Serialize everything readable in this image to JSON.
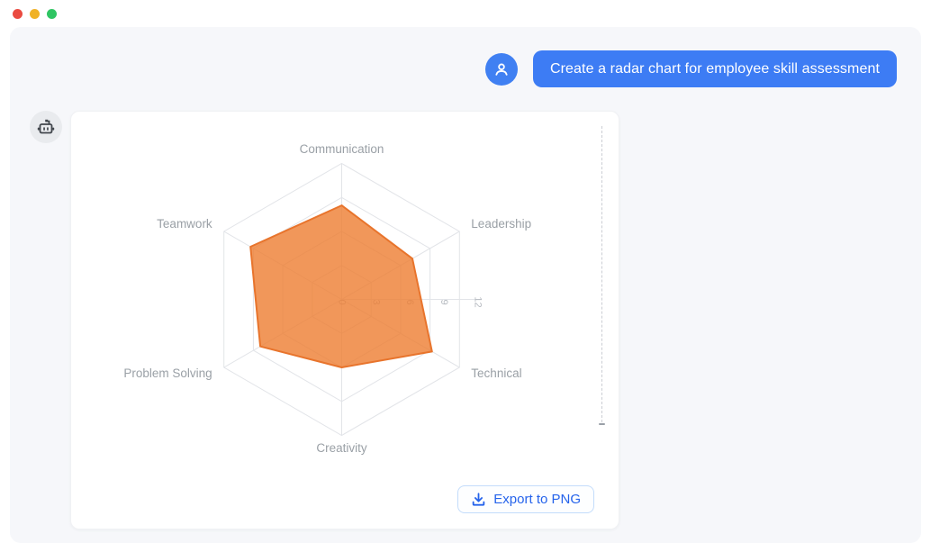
{
  "window": {
    "traffic_lights": {
      "close_color": "#ea4b41",
      "minimize_color": "#f0b226",
      "zoom_color": "#2fc563"
    }
  },
  "user_message": {
    "text": "Create a radar chart for employee skill assessment",
    "bubble_color": "#3d7cf4",
    "avatar_color": "#4080f2"
  },
  "assistant": {
    "export_button_label": "Export to PNG",
    "export_text_color": "#2563eb"
  },
  "chart_data": {
    "type": "radar",
    "title": "",
    "indicators": [
      "Communication",
      "Leadership",
      "Technical",
      "Creativity",
      "Problem Solving",
      "Teamwork"
    ],
    "values": [
      8.3,
      7.2,
      9.2,
      6.0,
      8.3,
      9.3
    ],
    "axis_max": 12,
    "ticks": [
      0,
      3,
      6,
      9,
      12
    ],
    "rings": [
      3,
      6,
      9,
      12
    ],
    "grid_shape": "polygon",
    "start_axis": "top",
    "direction": "clockwise",
    "legend": "none",
    "series_fill": "rgba(237,125,49,0.8)",
    "series_stroke": "#e8742c",
    "grid_color": "#e2e4e8",
    "axis_label_color": "#9aa0a6",
    "tick_label_color": "#b7bbc1",
    "tick_labels_rotated_deg": 90
  }
}
